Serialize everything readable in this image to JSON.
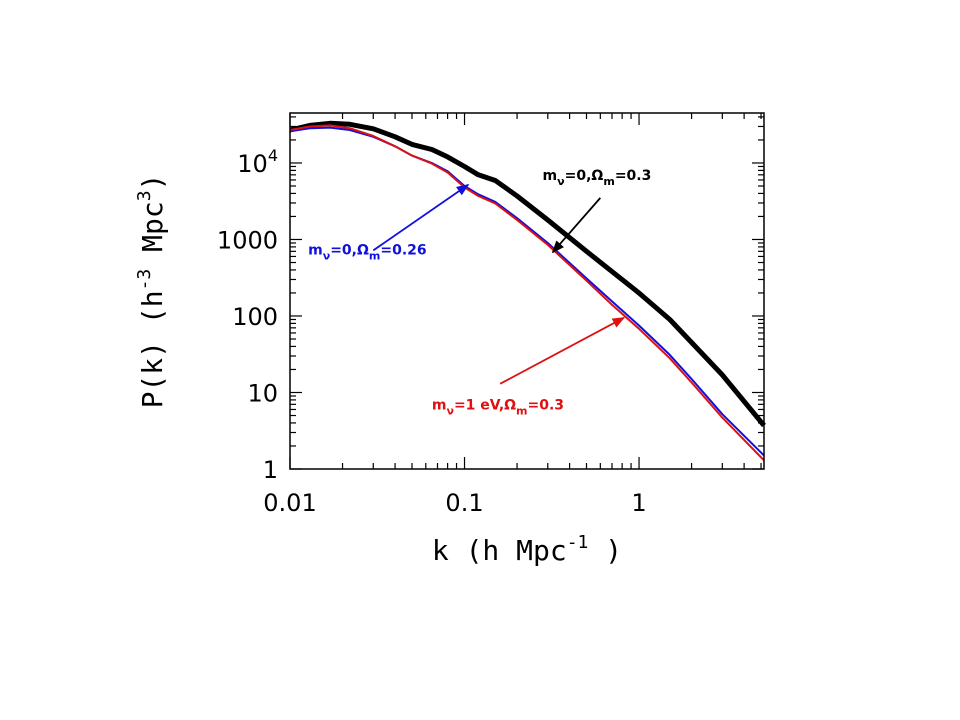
{
  "chart_data": {
    "type": "line",
    "xlabel": "k (h Mpc",
    "xlabel_sup": "-1",
    "xlabel_end": " )",
    "ylabel": "P(k) (h",
    "ylabel_sup1": "-3",
    "ylabel_mid": " Mpc",
    "ylabel_sup2": "3",
    "ylabel_end": ")",
    "xscale": "log",
    "yscale": "log",
    "xlim": [
      0.01,
      5.2
    ],
    "ylim": [
      1,
      45000
    ],
    "grid": false,
    "x_ticks": [
      {
        "value": 0.01,
        "label": "0.01"
      },
      {
        "value": 0.1,
        "label": "0.1"
      },
      {
        "value": 1,
        "label": "1"
      }
    ],
    "y_ticks": [
      {
        "value": 1,
        "label": "1"
      },
      {
        "value": 10,
        "label": "10"
      },
      {
        "value": 100,
        "label": "100"
      },
      {
        "value": 1000,
        "label": "1000"
      },
      {
        "value": 10000,
        "label": "10",
        "sup": "4"
      }
    ],
    "series": [
      {
        "color": "#000000",
        "width": 5,
        "x": [
          0.01,
          0.013,
          0.017,
          0.022,
          0.03,
          0.04,
          0.05,
          0.065,
          0.08,
          0.1,
          0.12,
          0.15,
          0.2,
          0.3,
          0.5,
          0.7,
          1.0,
          1.5,
          2.0,
          3.0,
          5.2
        ],
        "y": [
          27000,
          31000,
          33000,
          32000,
          28000,
          22000,
          17500,
          15000,
          12000,
          9000,
          7000,
          5900,
          3700,
          1800,
          700,
          380,
          200,
          90,
          45,
          17,
          3.7
        ]
      },
      {
        "color": "#1010dd",
        "width": 2,
        "x": [
          0.01,
          0.013,
          0.017,
          0.022,
          0.03,
          0.04,
          0.05,
          0.065,
          0.08,
          0.1,
          0.12,
          0.15,
          0.2,
          0.3,
          0.5,
          0.7,
          1.0,
          1.5,
          2.0,
          3.0,
          5.2
        ],
        "y": [
          26000,
          28500,
          29000,
          27000,
          22000,
          16500,
          12500,
          10000,
          7800,
          5000,
          3900,
          3100,
          1900,
          900,
          310,
          155,
          75,
          31,
          15,
          5.2,
          1.5
        ]
      },
      {
        "color": "#dd1111",
        "width": 2,
        "x": [
          0.01,
          0.013,
          0.017,
          0.022,
          0.03,
          0.04,
          0.05,
          0.065,
          0.08,
          0.1,
          0.12,
          0.15,
          0.2,
          0.3,
          0.5,
          0.7,
          1.0,
          1.5,
          2.0,
          3.0,
          5.2
        ],
        "y": [
          27000,
          30000,
          31000,
          28500,
          22500,
          16500,
          12500,
          9800,
          7500,
          4800,
          3700,
          2950,
          1800,
          850,
          290,
          140,
          68,
          28,
          13.5,
          4.7,
          1.3
        ]
      }
    ],
    "annotations": [
      {
        "color": "#000000",
        "parts": [
          {
            "t": "m"
          },
          {
            "t": "ν",
            "sub": true
          },
          {
            "t": "=0,Ω"
          },
          {
            "t": "m",
            "sub": true
          },
          {
            "t": "=0.3"
          }
        ],
        "text_x": 0.28,
        "text_y": 6000,
        "arrow_from": [
          0.6,
          3500
        ],
        "arrow_to": [
          0.32,
          680
        ]
      },
      {
        "color": "#1010dd",
        "parts": [
          {
            "t": "m"
          },
          {
            "t": "ν",
            "sub": true
          },
          {
            "t": "=0,Ω"
          },
          {
            "t": "m",
            "sub": true
          },
          {
            "t": "=0.26"
          }
        ],
        "text_x": 0.0127,
        "text_y": 640,
        "arrow_from": [
          0.03,
          720
        ],
        "arrow_to": [
          0.105,
          5200
        ]
      },
      {
        "color": "#dd1111",
        "parts": [
          {
            "t": "m"
          },
          {
            "t": "ν",
            "sub": true
          },
          {
            "t": "=1  eV,Ω"
          },
          {
            "t": "m",
            "sub": true
          },
          {
            "t": "=0.3"
          }
        ],
        "text_x": 0.065,
        "text_y": 6,
        "arrow_from": [
          0.16,
          13
        ],
        "arrow_to": [
          0.82,
          95
        ]
      }
    ]
  }
}
